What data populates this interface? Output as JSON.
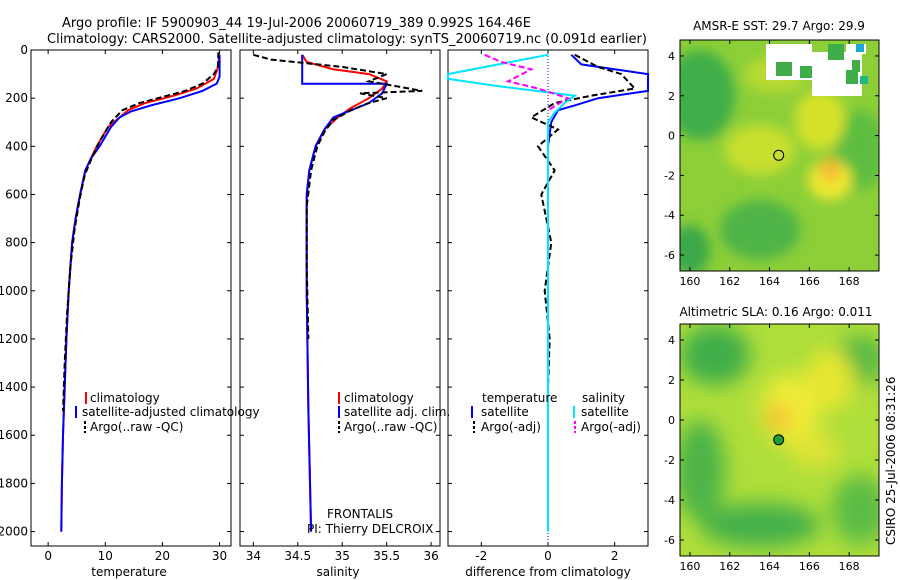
{
  "header": {
    "title_line1": "Argo profile: IF 5900903_44 19-Jul-2006 20060719_389 0.992S 164.46E",
    "title_line2": "Climatology: CARS2000. Satellite-adjusted climatology: synTS_20060719.nc (0.091d earlier)"
  },
  "footer": {
    "credit": "CSIRO 25-Jul-2006 08:31:26"
  },
  "colors": {
    "climatology": "#ff0000",
    "satellite": "#0000ff",
    "argo": "#000000",
    "sal_satellite": "#00e5ff",
    "sal_argo": "#ff00ff"
  },
  "chart_data": [
    {
      "type": "line",
      "panel": "temperature",
      "xlabel": "temperature",
      "xlim": [
        -3,
        32
      ],
      "ylim": [
        2060,
        0
      ],
      "y_reversed": true,
      "xticks": [
        0,
        10,
        20,
        30
      ],
      "yticks": [
        0,
        200,
        400,
        600,
        800,
        1000,
        1200,
        1400,
        1600,
        1800,
        2000
      ],
      "legend": [
        "climatology",
        "satellite-adjusted climatology",
        "Argo(..raw -QC)"
      ],
      "legend_loc": "lower-right",
      "series": [
        {
          "name": "climatology",
          "color": "#ff0000",
          "x": [
            30.0,
            29.6,
            29.0,
            26.0,
            22.0,
            17.0,
            14.0,
            12.5,
            10.5,
            8.5,
            7.5,
            6.5,
            5.6,
            4.8,
            4.2,
            3.6,
            3.2,
            2.9,
            2.6,
            2.4,
            2.3
          ],
          "y": [
            20,
            80,
            120,
            160,
            190,
            220,
            250,
            280,
            320,
            400,
            450,
            500,
            600,
            700,
            800,
            1000,
            1200,
            1400,
            1600,
            1800,
            2000
          ]
        },
        {
          "name": "satellite-adjusted climatology",
          "color": "#0000ff",
          "x": [
            30.0,
            30.0,
            29.5,
            27.0,
            23.0,
            18.0,
            14.5,
            12.5,
            11.0,
            9.0,
            7.5,
            6.5,
            5.6,
            4.8,
            4.2,
            3.6,
            3.2,
            2.9,
            2.6,
            2.4,
            2.3
          ],
          "y": [
            20,
            110,
            140,
            170,
            200,
            230,
            255,
            280,
            320,
            400,
            450,
            500,
            600,
            700,
            800,
            1000,
            1200,
            1400,
            1600,
            1800,
            2000
          ]
        },
        {
          "name": "Argo(..raw -QC)",
          "color": "#000000",
          "dash": true,
          "x": [
            29.8,
            29.7,
            29.0,
            27.0,
            24.0,
            20.0,
            16.0,
            13.0,
            11.0,
            9.0,
            7.6,
            6.4,
            5.5,
            4.6,
            3.9,
            3.3,
            2.9,
            2.6
          ],
          "y": [
            10,
            70,
            100,
            140,
            170,
            195,
            220,
            250,
            300,
            380,
            450,
            520,
            620,
            750,
            900,
            1100,
            1300,
            1500
          ]
        }
      ]
    },
    {
      "type": "line",
      "panel": "salinity",
      "xlabel": "salinity",
      "xlim": [
        33.85,
        36.1
      ],
      "ylim": [
        2060,
        0
      ],
      "y_reversed": true,
      "xticks": [
        34,
        34.5,
        35,
        35.5,
        36
      ],
      "legend": [
        "climatology",
        "satellite adj. clim.",
        "Argo(..raw -QC)"
      ],
      "legend_loc": "lower-right",
      "annotation": [
        "FRONTALIS",
        "PI: Thierry DELCROIX"
      ],
      "series": [
        {
          "name": "climatology",
          "color": "#ff0000",
          "x": [
            34.55,
            34.6,
            34.9,
            35.3,
            35.5,
            35.45,
            35.3,
            35.1,
            34.95,
            34.8,
            34.7,
            34.63,
            34.6,
            34.6,
            34.6,
            34.62,
            34.65
          ],
          "y": [
            20,
            50,
            80,
            100,
            130,
            160,
            200,
            240,
            280,
            330,
            400,
            500,
            600,
            800,
            1000,
            1500,
            2000
          ]
        },
        {
          "name": "satellite adj. clim.",
          "color": "#0000ff",
          "x": [
            34.55,
            34.55,
            35.5,
            35.45,
            35.3,
            35.1,
            34.9,
            34.8,
            34.7,
            34.63,
            34.6,
            34.6,
            34.6,
            34.62,
            34.65
          ],
          "y": [
            20,
            140,
            140,
            180,
            220,
            250,
            280,
            330,
            400,
            500,
            600,
            800,
            1000,
            1500,
            2000
          ]
        },
        {
          "name": "Argo(..raw -QC)",
          "color": "#000000",
          "dash": true,
          "x": [
            34.0,
            34.2,
            35.0,
            35.5,
            35.3,
            35.9,
            35.2,
            35.5,
            35.3,
            35.1,
            34.9,
            34.8,
            34.72,
            34.65,
            34.6,
            34.6,
            34.62
          ],
          "y": [
            20,
            40,
            70,
            100,
            130,
            170,
            180,
            200,
            220,
            250,
            290,
            340,
            400,
            500,
            650,
            900,
            1200
          ]
        }
      ]
    },
    {
      "type": "line",
      "panel": "difference",
      "xlabel": "difference from climatology",
      "xlim": [
        -3,
        3
      ],
      "ylim": [
        2060,
        0
      ],
      "y_reversed": true,
      "xticks": [
        -2,
        0,
        2
      ],
      "legend_titles": [
        "temperature",
        "salinity"
      ],
      "legend": [
        "satellite",
        "Argo(-adj)",
        "satellite",
        "Argo(-adj)"
      ],
      "legend_loc": "lower",
      "series": [
        {
          "name": "temperature satellite",
          "color": "#0000ff",
          "x": [
            0.7,
            1.0,
            3.0,
            3.0,
            1.5,
            0.8,
            0.3,
            0.1,
            0.0,
            0.0,
            0.0,
            0.0
          ],
          "y": [
            20,
            60,
            100,
            170,
            200,
            230,
            250,
            300,
            400,
            600,
            1000,
            1500
          ]
        },
        {
          "name": "temperature Argo(-adj)",
          "color": "#000000",
          "dash": true,
          "x": [
            0.8,
            1.5,
            2.2,
            2.6,
            1.3,
            0.2,
            -0.5,
            0.3,
            -0.3,
            0.2,
            -0.2,
            0.1,
            -0.1,
            0.05,
            0.0,
            0.0
          ],
          "y": [
            20,
            70,
            100,
            160,
            190,
            220,
            280,
            330,
            400,
            500,
            600,
            800,
            1000,
            1200,
            1400,
            1500
          ]
        },
        {
          "name": "salinity satellite",
          "color": "#00e5ff",
          "x": [
            0.0,
            -3.0,
            -3.0,
            -1.5,
            0.8,
            0.5,
            0.2,
            0.0,
            0.0,
            0.0
          ],
          "y": [
            20,
            100,
            120,
            150,
            190,
            220,
            260,
            300,
            600,
            2000
          ]
        },
        {
          "name": "salinity Argo(-adj)",
          "color": "#ff00ff",
          "dash": true,
          "x": [
            -1.9,
            -1.4,
            -0.5,
            -1.2,
            -0.3,
            0.6,
            0.0
          ],
          "y": [
            20,
            50,
            80,
            130,
            160,
            200,
            250
          ]
        }
      ]
    },
    {
      "type": "heatmap",
      "panel": "sst_map",
      "title": "AMSR-E SST: 29.7 Argo: 29.9",
      "xlim": [
        159.5,
        169.5
      ],
      "ylim": [
        -6.8,
        4.8
      ],
      "xticks": [
        160,
        162,
        164,
        166,
        168
      ],
      "yticks": [
        4,
        2,
        0,
        -2,
        -4,
        -6
      ],
      "marker": {
        "lon": 164.46,
        "lat": -0.992,
        "fill": "none"
      }
    },
    {
      "type": "heatmap",
      "panel": "sla_map",
      "title": "Altimetric SLA: 0.16 Argo: 0.011",
      "xlim": [
        159.5,
        169.5
      ],
      "ylim": [
        -6.8,
        4.8
      ],
      "xticks": [
        160,
        162,
        164,
        166,
        168
      ],
      "yticks": [
        4,
        2,
        0,
        -2,
        -4,
        -6
      ],
      "marker": {
        "lon": 164.46,
        "lat": -0.992,
        "fill": "green"
      }
    }
  ]
}
